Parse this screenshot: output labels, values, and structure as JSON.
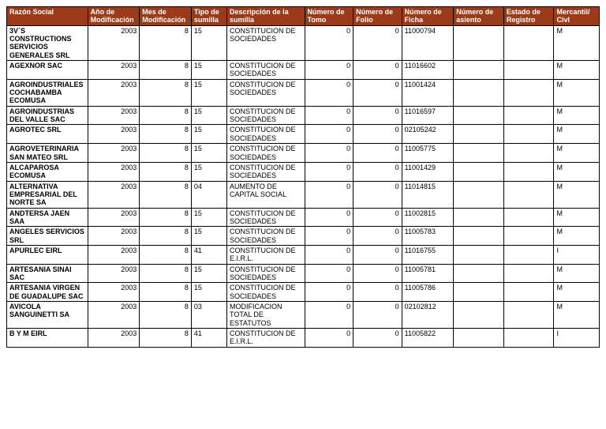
{
  "header_bg": "#9b3b1a",
  "header_fg": "#ffffff",
  "columns": [
    "Razón Social",
    "Año de Modificación",
    "Mes de Modificación",
    "Tipo de sumilla",
    "Descripción de la sumilla",
    "Número de Tomo",
    "Número de Folio",
    "Número de Ficha",
    "Número de asiento",
    "Estado de Registro",
    "Mercantil/ Civl"
  ],
  "col_align": [
    "left",
    "right",
    "right",
    "left",
    "left",
    "right",
    "right",
    "left",
    "left",
    "left",
    "left"
  ],
  "rows": [
    {
      "razon": "3V´S CONSTRUCTIONS SERVICIOS GENERALES SRL",
      "anio": "2003",
      "mes": "8",
      "tipo": "15",
      "desc": "CONSTITUCION DE SOCIEDADES",
      "tomo": "0",
      "folio": "0",
      "ficha": "11000794",
      "asiento": "",
      "estado": "",
      "mer": "M"
    },
    {
      "razon": "AGEXNOR SAC",
      "anio": "2003",
      "mes": "8",
      "tipo": "15",
      "desc": "CONSTITUCION DE SOCIEDADES",
      "tomo": "0",
      "folio": "0",
      "ficha": "11016602",
      "asiento": "",
      "estado": "",
      "mer": "M"
    },
    {
      "razon": "AGROINDUSTRIALES COCHABAMBA ECOMUSA",
      "anio": "2003",
      "mes": "8",
      "tipo": "15",
      "desc": "CONSTITUCION DE SOCIEDADES",
      "tomo": "0",
      "folio": "0",
      "ficha": "11001424",
      "asiento": "",
      "estado": "",
      "mer": "M"
    },
    {
      "razon": "AGROINDUSTRIAS DEL VALLE SAC",
      "anio": "2003",
      "mes": "8",
      "tipo": "15",
      "desc": "CONSTITUCION DE SOCIEDADES",
      "tomo": "0",
      "folio": "0",
      "ficha": "11016597",
      "asiento": "",
      "estado": "",
      "mer": "M"
    },
    {
      "razon": "AGROTEC SRL",
      "anio": "2003",
      "mes": "8",
      "tipo": "15",
      "desc": "CONSTITUCION DE SOCIEDADES",
      "tomo": "0",
      "folio": "0",
      "ficha": "02105242",
      "asiento": "",
      "estado": "",
      "mer": "M"
    },
    {
      "razon": "AGROVETERINARIA SAN MATEO SRL",
      "anio": "2003",
      "mes": "8",
      "tipo": "15",
      "desc": "CONSTITUCION DE SOCIEDADES",
      "tomo": "0",
      "folio": "0",
      "ficha": "11005775",
      "asiento": "",
      "estado": "",
      "mer": "M"
    },
    {
      "razon": "ALCAPAROSA ECOMUSA",
      "anio": "2003",
      "mes": "8",
      "tipo": "15",
      "desc": "CONSTITUCION DE SOCIEDADES",
      "tomo": "0",
      "folio": "0",
      "ficha": "11001429",
      "asiento": "",
      "estado": "",
      "mer": "M"
    },
    {
      "razon": "ALTERNATIVA EMPRESARIAL DEL NORTE SA",
      "anio": "2003",
      "mes": "8",
      "tipo": "04",
      "desc": "AUMENTO DE CAPITAL SOCIAL",
      "tomo": "0",
      "folio": "0",
      "ficha": "11014815",
      "asiento": "",
      "estado": "",
      "mer": "M"
    },
    {
      "razon": "ANDTERSA JAEN SAA",
      "anio": "2003",
      "mes": "8",
      "tipo": "15",
      "desc": "CONSTITUCION DE SOCIEDADES",
      "tomo": "0",
      "folio": "0",
      "ficha": "11002815",
      "asiento": "",
      "estado": "",
      "mer": "M"
    },
    {
      "razon": "ANGELES SERVICIOS SRL",
      "anio": "2003",
      "mes": "8",
      "tipo": "15",
      "desc": "CONSTITUCION DE SOCIEDADES",
      "tomo": "0",
      "folio": "0",
      "ficha": "11005783",
      "asiento": "",
      "estado": "",
      "mer": "M"
    },
    {
      "razon": "APURLEC EIRL",
      "anio": "2003",
      "mes": "8",
      "tipo": "41",
      "desc": "CONSTITUCION DE E.I.R.L.",
      "tomo": "0",
      "folio": "0",
      "ficha": "11016755",
      "asiento": "",
      "estado": "",
      "mer": "I"
    },
    {
      "razon": "ARTESANIA SINAI SAC",
      "anio": "2003",
      "mes": "8",
      "tipo": "15",
      "desc": "CONSTITUCION DE SOCIEDADES",
      "tomo": "0",
      "folio": "0",
      "ficha": "11005781",
      "asiento": "",
      "estado": "",
      "mer": "M"
    },
    {
      "razon": "ARTESANIA VIRGEN DE GUADALUPE SAC",
      "anio": "2003",
      "mes": "8",
      "tipo": "15",
      "desc": "CONSTITUCION DE SOCIEDADES",
      "tomo": "0",
      "folio": "0",
      "ficha": "11005786",
      "asiento": "",
      "estado": "",
      "mer": "M"
    },
    {
      "razon": "AVICOLA SANGUINETTI SA",
      "anio": "2003",
      "mes": "8",
      "tipo": "03",
      "desc": "MODIFICACION TOTAL DE ESTATUTOS",
      "tomo": "0",
      "folio": "0",
      "ficha": "02102812",
      "asiento": "",
      "estado": "",
      "mer": "M"
    },
    {
      "razon": "B Y M EIRL",
      "anio": "2003",
      "mes": "8",
      "tipo": "41",
      "desc": "CONSTITUCION DE E.I.R.L.",
      "tomo": "0",
      "folio": "0",
      "ficha": "11005822",
      "asiento": "",
      "estado": "",
      "mer": "I"
    }
  ]
}
